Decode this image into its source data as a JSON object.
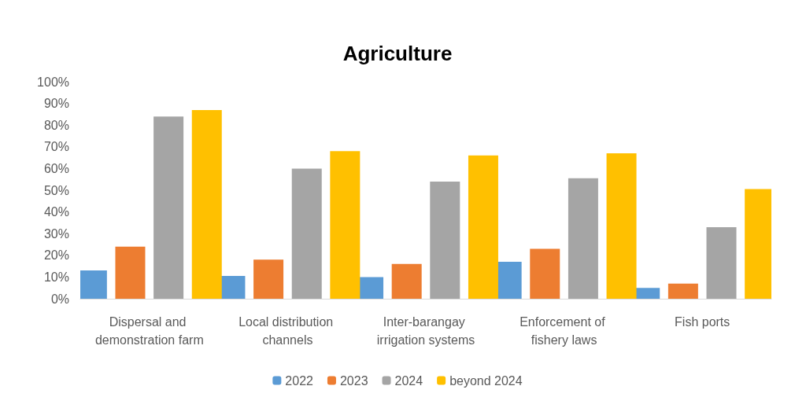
{
  "chart_data": {
    "type": "bar",
    "title": "Agriculture",
    "categories": [
      "Dispersal and demonstration farm",
      "Local distribution channels",
      "Inter-barangay irrigation systems",
      "Enforcement of fishery laws",
      "Fish ports"
    ],
    "series": [
      {
        "name": "2022",
        "color": "#5b9bd5",
        "values": [
          13,
          10.5,
          10,
          17,
          5
        ]
      },
      {
        "name": "2023",
        "color": "#ed7d31",
        "values": [
          24,
          18,
          16,
          23,
          7
        ]
      },
      {
        "name": "2024",
        "color": "#a5a5a5",
        "values": [
          84,
          60,
          54,
          55.5,
          33
        ]
      },
      {
        "name": "beyond 2024",
        "color": "#ffc000",
        "values": [
          87,
          68,
          66,
          67,
          50.5
        ]
      }
    ],
    "ylim": [
      0,
      100
    ],
    "yticks": [
      {
        "value": 0,
        "label": "0%"
      },
      {
        "value": 10,
        "label": "10%"
      },
      {
        "value": 20,
        "label": "20%"
      },
      {
        "value": 30,
        "label": "30%"
      },
      {
        "value": 40,
        "label": "40%"
      },
      {
        "value": 50,
        "label": "50%"
      },
      {
        "value": 60,
        "label": "60%"
      },
      {
        "value": 70,
        "label": "70%"
      },
      {
        "value": 80,
        "label": "80%"
      },
      {
        "value": 90,
        "label": "90%"
      },
      {
        "value": 100,
        "label": "100%"
      }
    ],
    "grid": false,
    "legend": "bottom"
  }
}
